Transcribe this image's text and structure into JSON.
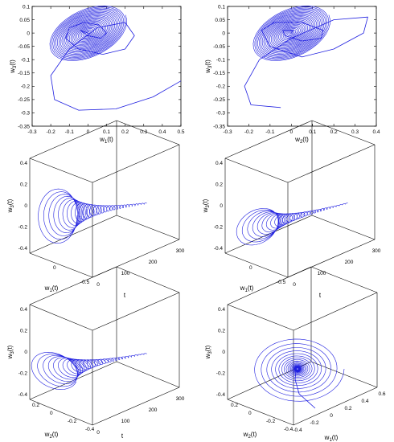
{
  "colors": {
    "curve": "#1f1fe0",
    "axis": "#000000",
    "box": "#000000"
  },
  "chart_data": [
    {
      "type": "line",
      "panel": "top-left",
      "xlabel": "w1(t)",
      "ylabel": "w3(t)",
      "xlim": [
        -0.3,
        0.5
      ],
      "ylim": [
        -0.35,
        0.1
      ],
      "xticks": [
        "-0.3",
        "-0.2",
        "-0.1",
        "0",
        "0.1",
        "0.2",
        "0.3",
        "0.4",
        "0.5"
      ],
      "yticks": [
        "0.1",
        "0.05",
        "0",
        "-0.05",
        "-0.1",
        "-0.15",
        "-0.2",
        "-0.25",
        "-0.3",
        "-0.35"
      ],
      "series": [
        {
          "x": [
            0.5,
            0.35,
            0.15,
            -0.05,
            -0.18,
            -0.2,
            -0.1,
            0.05,
            0.2,
            0.25,
            0.2,
            0.08,
            -0.05,
            -0.12,
            -0.1,
            -0.02,
            0.06,
            0.1,
            0.07,
            0.0,
            -0.04,
            0.0
          ],
          "y": [
            -0.18,
            -0.24,
            -0.285,
            -0.29,
            -0.25,
            -0.16,
            -0.06,
            0.02,
            0.04,
            -0.01,
            -0.06,
            -0.08,
            -0.06,
            -0.02,
            0.02,
            0.04,
            0.03,
            0.0,
            -0.02,
            -0.01,
            0.01,
            0.0
          ]
        }
      ]
    },
    {
      "type": "line",
      "panel": "top-right",
      "xlabel": "w2(t)",
      "ylabel": "w3(t)",
      "xlim": [
        -0.3,
        0.4
      ],
      "ylim": [
        -0.35,
        0.1
      ],
      "xticks": [
        "-0.3",
        "-0.2",
        "-0.1",
        "0",
        "0.1",
        "0.2",
        "0.3",
        "0.4"
      ],
      "yticks": [
        "0.1",
        "0.05",
        "0",
        "-0.05",
        "-0.1",
        "-0.15",
        "-0.2",
        "-0.25",
        "-0.3",
        "-0.35"
      ],
      "series": [
        {
          "x": [
            -0.05,
            -0.19,
            -0.22,
            -0.15,
            0.0,
            0.2,
            0.36,
            0.34,
            0.2,
            0.05,
            -0.1,
            -0.14,
            -0.08,
            0.05,
            0.15,
            0.14,
            0.05,
            -0.03,
            -0.04,
            0.01,
            0.0
          ],
          "y": [
            -0.28,
            -0.27,
            -0.2,
            -0.1,
            -0.02,
            0.05,
            0.06,
            0.0,
            -0.06,
            -0.09,
            -0.05,
            0.01,
            0.04,
            0.04,
            0.01,
            -0.02,
            -0.03,
            -0.01,
            0.01,
            0.01,
            0.0
          ]
        }
      ]
    },
    {
      "type": "line",
      "panel": "middle-left",
      "xlabel": "t",
      "ylabel": "w3(t)",
      "zlabel": "w1(t)",
      "t_ticks": [
        "0",
        "100",
        "200",
        "300"
      ],
      "w_ticks": [
        "0",
        "-0.5"
      ],
      "z_ticks": [
        "0.4",
        "0.2",
        "0",
        "-0.2",
        "-0.4"
      ]
    },
    {
      "type": "line",
      "panel": "middle-right",
      "xlabel": "t",
      "ylabel": "w3(t)",
      "zlabel": "w1(t)",
      "t_ticks": [
        "0",
        "100",
        "200",
        "300"
      ],
      "w_ticks": [
        "0",
        "-0.5"
      ],
      "z_ticks": [
        "0.4",
        "0.2",
        "0",
        "-0.2",
        "-0.4"
      ]
    },
    {
      "type": "line",
      "panel": "bottom-left",
      "xlabel": "t",
      "ylabel": "w3(t)",
      "zlabel": "w2(t)",
      "t_ticks": [
        "0",
        "100",
        "200",
        "300"
      ],
      "w_ticks": [
        "0.2",
        "0",
        "-0.2",
        "-0.4"
      ],
      "z_ticks": [
        "0.4",
        "0.2",
        "0",
        "-0.2",
        "-0.4"
      ]
    },
    {
      "type": "line",
      "panel": "bottom-right",
      "xlabel": "w1(t)",
      "ylabel": "w3(t)",
      "zlabel": "w2(t)",
      "x_ticks": [
        "-0.4",
        "-0.2",
        "0",
        "0.2",
        "0.4",
        "0.6"
      ],
      "w_ticks": [
        "0.2",
        "0",
        "-0.2",
        "-0.4"
      ],
      "z_ticks": [
        "0.4",
        "0.2",
        "0",
        "-0.2",
        "-0.4"
      ]
    }
  ]
}
